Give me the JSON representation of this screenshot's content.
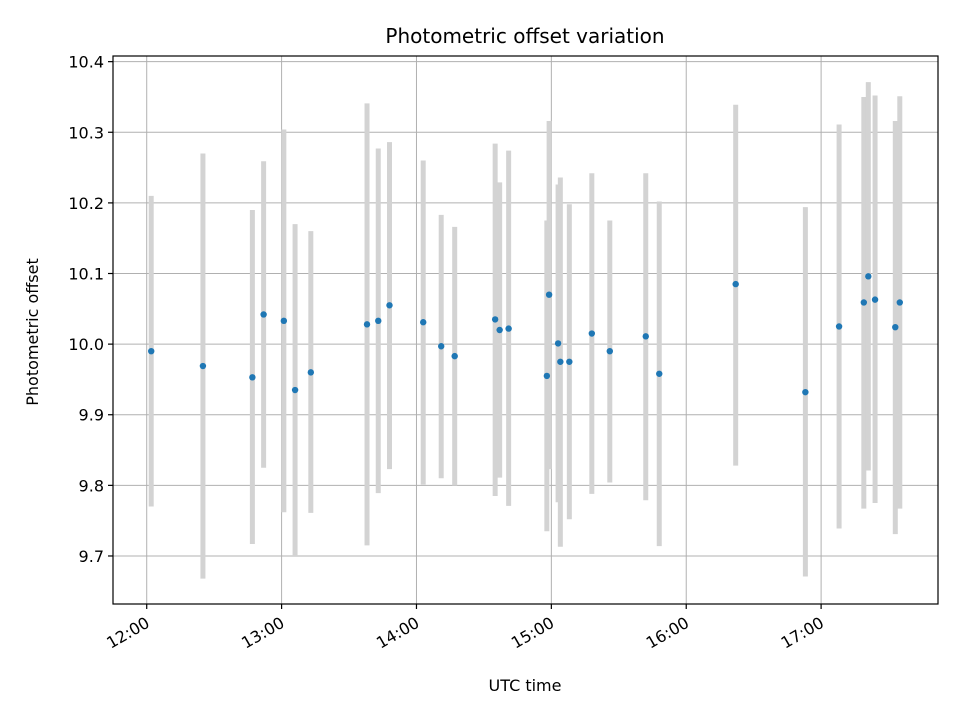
{
  "chart_data": {
    "type": "scatter",
    "title": "Photometric offset variation",
    "xlabel": "UTC time",
    "ylabel": "Photometric offset",
    "xlim": [
      "11:45",
      "17:52"
    ],
    "ylim": [
      9.632,
      10.408
    ],
    "x_ticks": [
      "12:00",
      "13:00",
      "14:00",
      "15:00",
      "16:00",
      "17:00"
    ],
    "y_ticks": [
      9.7,
      9.8,
      9.9,
      10.0,
      10.1,
      10.2,
      10.3,
      10.4
    ],
    "grid": true,
    "colors": {
      "points": "#1f77b4",
      "errorbars": "#d3d3d3",
      "grid": "#b0b0b0"
    },
    "series": [
      {
        "points": [
          {
            "x": "12:02",
            "y": 9.99,
            "yerr_low": 9.77,
            "yerr_high": 10.21
          },
          {
            "x": "12:25",
            "y": 9.969,
            "yerr_low": 9.668,
            "yerr_high": 10.27
          },
          {
            "x": "12:47",
            "y": 9.953,
            "yerr_low": 9.717,
            "yerr_high": 10.19
          },
          {
            "x": "12:52",
            "y": 10.042,
            "yerr_low": 9.825,
            "yerr_high": 10.259
          },
          {
            "x": "13:01",
            "y": 10.033,
            "yerr_low": 9.762,
            "yerr_high": 10.304
          },
          {
            "x": "13:06",
            "y": 9.935,
            "yerr_low": 9.7,
            "yerr_high": 10.17
          },
          {
            "x": "13:13",
            "y": 9.96,
            "yerr_low": 9.761,
            "yerr_high": 10.16
          },
          {
            "x": "13:38",
            "y": 10.028,
            "yerr_low": 9.715,
            "yerr_high": 10.341
          },
          {
            "x": "13:43",
            "y": 10.033,
            "yerr_low": 9.789,
            "yerr_high": 10.277
          },
          {
            "x": "13:48",
            "y": 10.055,
            "yerr_low": 9.823,
            "yerr_high": 10.286
          },
          {
            "x": "14:03",
            "y": 10.031,
            "yerr_low": 9.801,
            "yerr_high": 10.26
          },
          {
            "x": "14:11",
            "y": 9.997,
            "yerr_low": 9.81,
            "yerr_high": 10.183
          },
          {
            "x": "14:17",
            "y": 9.983,
            "yerr_low": 9.8,
            "yerr_high": 10.166
          },
          {
            "x": "14:35",
            "y": 10.035,
            "yerr_low": 9.785,
            "yerr_high": 10.284
          },
          {
            "x": "14:37",
            "y": 10.02,
            "yerr_low": 9.811,
            "yerr_high": 10.229
          },
          {
            "x": "14:41",
            "y": 10.022,
            "yerr_low": 9.771,
            "yerr_high": 10.274
          },
          {
            "x": "14:58",
            "y": 9.955,
            "yerr_low": 9.735,
            "yerr_high": 10.175
          },
          {
            "x": "14:59",
            "y": 10.07,
            "yerr_low": 9.823,
            "yerr_high": 10.316
          },
          {
            "x": "15:03",
            "y": 10.001,
            "yerr_low": 9.776,
            "yerr_high": 10.226
          },
          {
            "x": "15:04",
            "y": 9.975,
            "yerr_low": 9.713,
            "yerr_high": 10.236
          },
          {
            "x": "15:08",
            "y": 9.975,
            "yerr_low": 9.752,
            "yerr_high": 10.198
          },
          {
            "x": "15:18",
            "y": 10.015,
            "yerr_low": 9.788,
            "yerr_high": 10.242
          },
          {
            "x": "15:26",
            "y": 9.99,
            "yerr_low": 9.804,
            "yerr_high": 10.175
          },
          {
            "x": "15:42",
            "y": 10.011,
            "yerr_low": 9.779,
            "yerr_high": 10.242
          },
          {
            "x": "15:48",
            "y": 9.958,
            "yerr_low": 9.714,
            "yerr_high": 10.202
          },
          {
            "x": "16:22",
            "y": 10.085,
            "yerr_low": 9.828,
            "yerr_high": 10.339
          },
          {
            "x": "16:53",
            "y": 9.932,
            "yerr_low": 9.671,
            "yerr_high": 10.194
          },
          {
            "x": "17:08",
            "y": 10.025,
            "yerr_low": 9.739,
            "yerr_high": 10.311
          },
          {
            "x": "17:19",
            "y": 10.059,
            "yerr_low": 9.767,
            "yerr_high": 10.35
          },
          {
            "x": "17:21",
            "y": 10.096,
            "yerr_low": 9.821,
            "yerr_high": 10.371
          },
          {
            "x": "17:24",
            "y": 10.063,
            "yerr_low": 9.775,
            "yerr_high": 10.352
          },
          {
            "x": "17:33",
            "y": 10.024,
            "yerr_low": 9.731,
            "yerr_high": 10.316
          },
          {
            "x": "17:35",
            "y": 10.059,
            "yerr_low": 9.767,
            "yerr_high": 10.351
          }
        ]
      }
    ]
  }
}
